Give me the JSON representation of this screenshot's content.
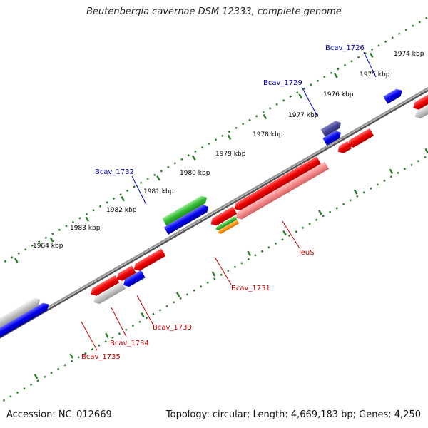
{
  "title": "Beutenbergia cavernae DSM 12333, complete genome",
  "footer": {
    "accession": "Accession: NC_012669",
    "topology": "Topology: circular; Length: 4,669,183 bp; Genes: 4,250"
  },
  "colors": {
    "forward_label": "#0000cc",
    "reverse_label": "#cc0000",
    "tick_mark": "#2e7d2e",
    "backbone": "#777777"
  },
  "scale_ticks": [
    "1974 kbp",
    "1975 kbp",
    "1976 kbp",
    "1977 kbp",
    "1978 kbp",
    "1979 kbp",
    "1980 kbp",
    "1981 kbp",
    "1982 kbp",
    "1983 kbp",
    "1984 kbp"
  ],
  "gene_labels": {
    "forward": [
      "Bcav_1726",
      "Bcav_1729",
      "Bcav_1732"
    ],
    "reverse": [
      "leuS",
      "Bcav_1731",
      "Bcav_1733",
      "Bcav_1734",
      "Bcav_1735"
    ]
  }
}
